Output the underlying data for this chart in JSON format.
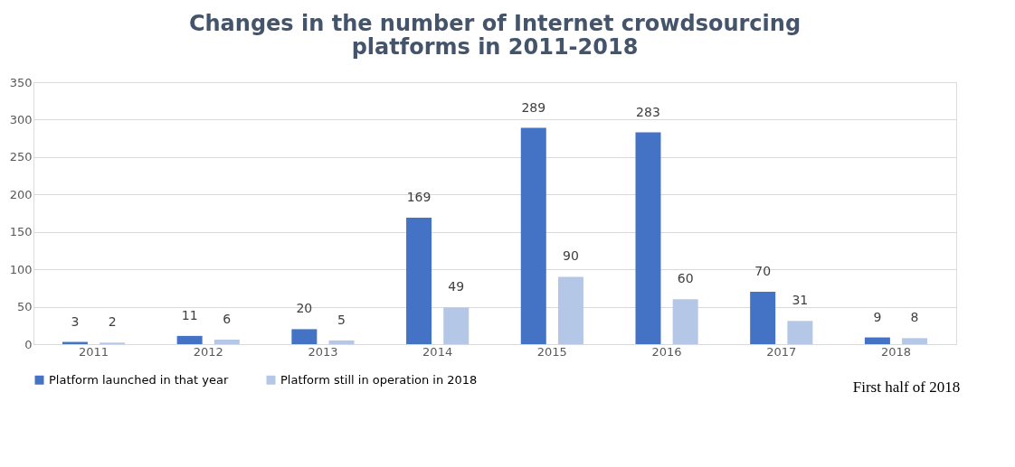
{
  "chart_data": {
    "type": "bar",
    "title": "Changes in the number of Internet crowdsourcing\nplatforms in 2011-2018",
    "categories": [
      "2011",
      "2012",
      "2013",
      "2014",
      "2015",
      "2016",
      "2017",
      "2018"
    ],
    "series": [
      {
        "name": "Platform launched in that year",
        "color": "#4472c4",
        "values": [
          3,
          11,
          20,
          169,
          289,
          283,
          70,
          9
        ]
      },
      {
        "name": "Platform still in operation in 2018",
        "color": "#b4c7e7",
        "values": [
          2,
          6,
          5,
          49,
          90,
          60,
          31,
          8
        ]
      }
    ],
    "ylim": [
      0,
      350
    ],
    "yticks": [
      0,
      50,
      100,
      150,
      200,
      250,
      300,
      350
    ],
    "grid": "y",
    "legend": "bottom",
    "data_labels": true,
    "annotations": [
      "First half of 2018"
    ]
  }
}
